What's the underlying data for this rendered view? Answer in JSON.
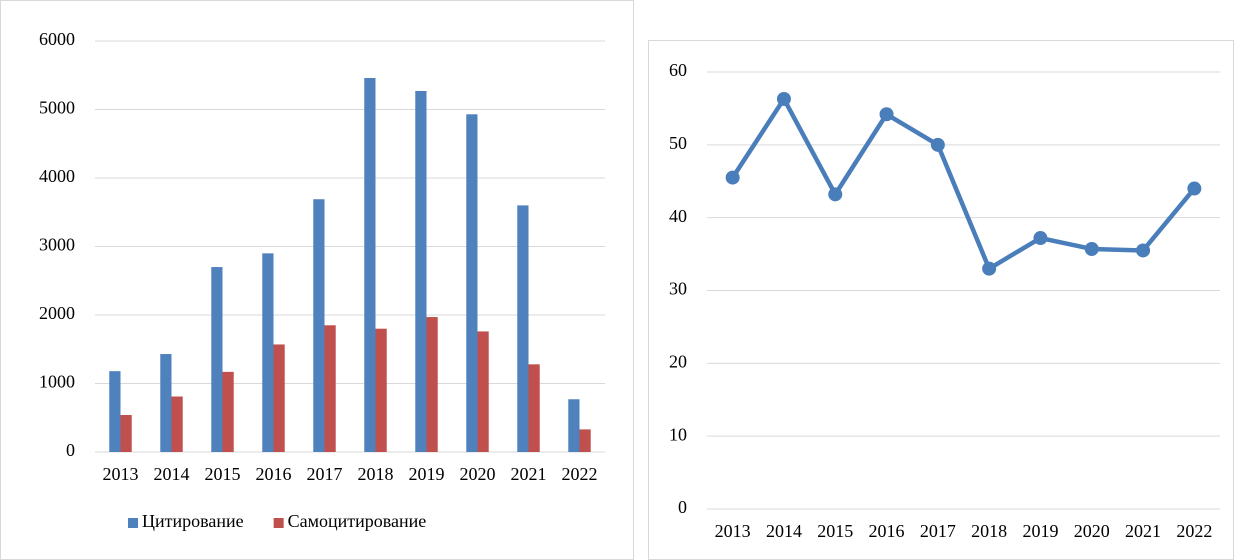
{
  "chart_data": [
    {
      "type": "bar",
      "categories": [
        "2013",
        "2014",
        "2015",
        "2016",
        "2017",
        "2018",
        "2019",
        "2020",
        "2021",
        "2022"
      ],
      "series": [
        {
          "name": "Цитирование",
          "color": "#4f81bd",
          "values": [
            1180,
            1430,
            2700,
            2900,
            3690,
            5460,
            5270,
            4930,
            3600,
            770
          ]
        },
        {
          "name": "Самоцитирование",
          "color": "#c0504d",
          "values": [
            540,
            810,
            1170,
            1570,
            1850,
            1800,
            1970,
            1760,
            1280,
            330
          ]
        }
      ],
      "ylim": [
        0,
        6000
      ],
      "yticks": [
        0,
        1000,
        2000,
        3000,
        4000,
        5000,
        6000
      ],
      "grid": true,
      "legend": "bottom"
    },
    {
      "type": "line",
      "categories": [
        "2013",
        "2014",
        "2015",
        "2016",
        "2017",
        "2018",
        "2019",
        "2020",
        "2021",
        "2022"
      ],
      "series": [
        {
          "name": null,
          "color": "#4a7ebb",
          "values": [
            45.5,
            56.3,
            43.2,
            54.2,
            50,
            33,
            37.2,
            35.7,
            35.5,
            44
          ]
        }
      ],
      "ylim": [
        0,
        60
      ],
      "yticks": [
        0,
        10,
        20,
        30,
        40,
        50,
        60
      ],
      "grid": true
    }
  ]
}
